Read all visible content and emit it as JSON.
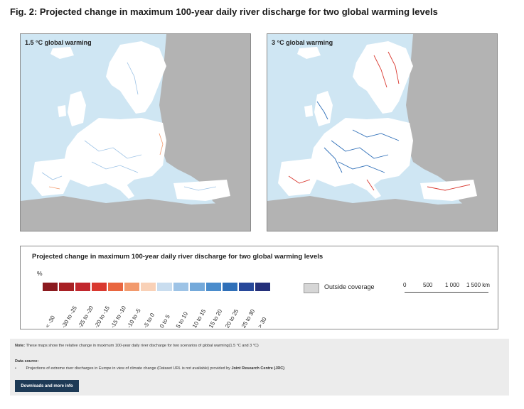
{
  "figure": {
    "title": "Fig. 2: Projected change in maximum 100-year daily river discharge for two global warming levels"
  },
  "maps": [
    {
      "label": "1.5 °C global warming",
      "scenario": "1.5 °C"
    },
    {
      "label": "3 °C global warming",
      "scenario": "3 °C"
    }
  ],
  "legend": {
    "title": "Projected change in maximum 100-year daily river discharge for two global warming levels",
    "unit": "%",
    "classes": [
      {
        "label": "< -30",
        "color": "#8b1a1f"
      },
      {
        "label": "-30 to -25",
        "color": "#a82024"
      },
      {
        "label": "-25 to -20",
        "color": "#c1272d"
      },
      {
        "label": "-20 to -15",
        "color": "#d9382f"
      },
      {
        "label": "-15 to -10",
        "color": "#e9663f"
      },
      {
        "label": "-10 to -5",
        "color": "#f29a6d"
      },
      {
        "label": "-5 to 0",
        "color": "#f9d1b7"
      },
      {
        "label": "0 to 5",
        "color": "#c9ddef"
      },
      {
        "label": "5 to 10",
        "color": "#9dc3e6"
      },
      {
        "label": "10 to 15",
        "color": "#74a9da"
      },
      {
        "label": "15 to 20",
        "color": "#4a8ccc"
      },
      {
        "label": "20 to 25",
        "color": "#2f6fb8"
      },
      {
        "label": "25 to 30",
        "color": "#27489a"
      },
      {
        "label": "> 30",
        "color": "#24307a"
      }
    ],
    "outside_label": "Outside coverage",
    "outside_color": "#d6d6d6",
    "scale_ticks": [
      "0",
      "500",
      "1 000",
      "1 500 km"
    ]
  },
  "info": {
    "note_label": "Note:",
    "note_text": "These maps show the relative change in maximum 100-year daily river discharge for two scenarios of global warming(1.5 °C and 3 °C)",
    "data_source_label": "Data source:",
    "data_source_bullet": "•",
    "data_source_text": "Projections of extreme river discharges in Europe in view of climate change (Dataset URL is not available) provided by",
    "data_source_provider": "Joint Research Centre (JRC)",
    "button_label": "Downloads and more info"
  },
  "colors": {
    "sea": "#cfe6f3",
    "land": "#ffffff",
    "outside": "#b3b3b3",
    "button": "#1d3a56"
  }
}
